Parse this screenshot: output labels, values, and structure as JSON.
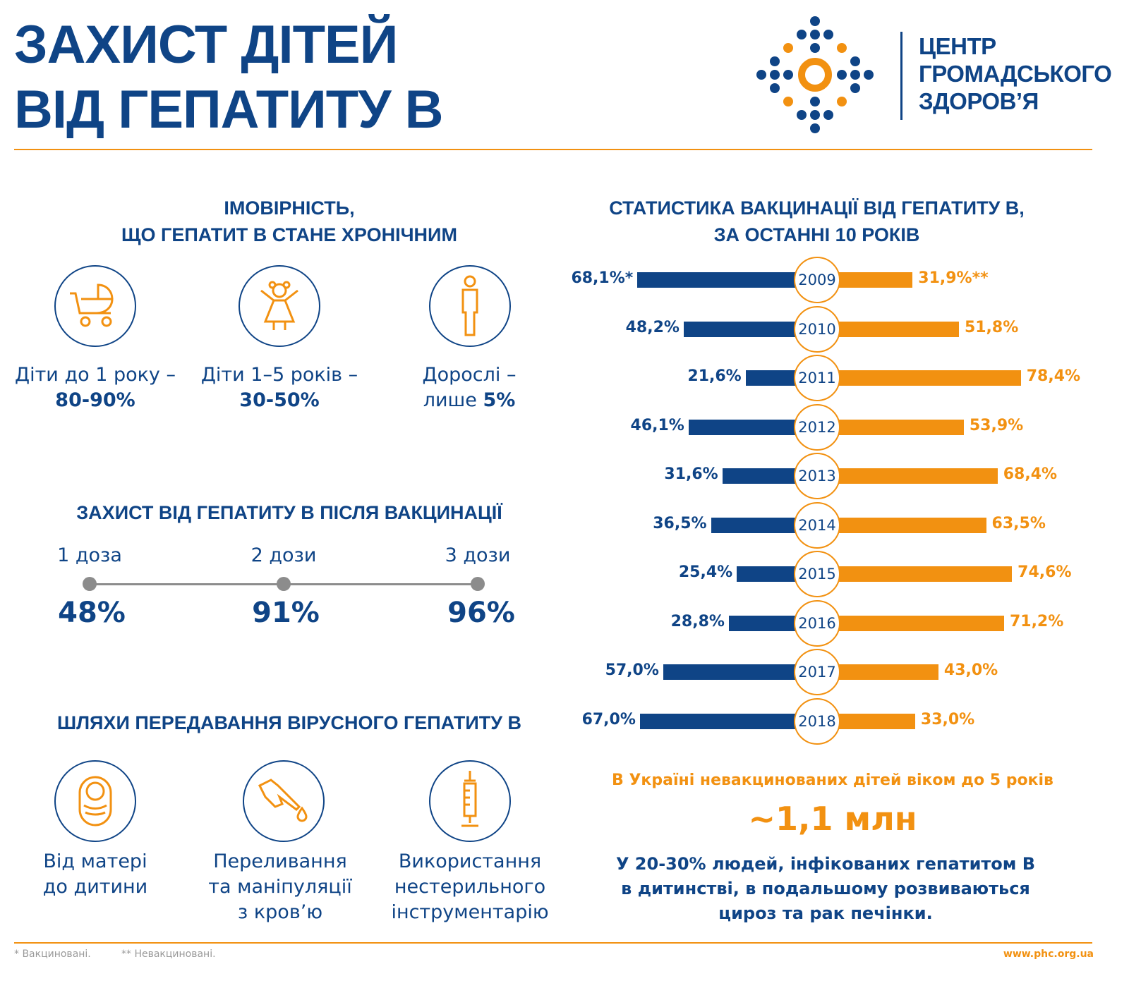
{
  "title": {
    "line1": "ЗАХИСТ ДІТЕЙ",
    "line2": "ВІД ГЕПАТИТУ В"
  },
  "logo": {
    "line1": "ЦЕНТР",
    "line2": "ГРОМАДСЬКОГО",
    "line3": "ЗДОРОВ’Я"
  },
  "chronic": {
    "title1": "ІМОВІРНІСТЬ,",
    "title2": "ЩО ГЕПАТИТ В СТАНЕ ХРОНІЧНИМ",
    "items": [
      {
        "icon": "stroller-icon",
        "label": "Діти до 1 року –",
        "value": "80-90%"
      },
      {
        "icon": "child-icon",
        "label": "Діти 1–5 років –",
        "value": "30-50%"
      },
      {
        "icon": "adult-icon",
        "label": "Дорослі –",
        "prefix": "лише ",
        "value": "5%"
      }
    ]
  },
  "vaccination": {
    "title": "ЗАХИСТ ВІД ГЕПАТИТУ В ПІСЛЯ ВАКЦИНАЦІЇ",
    "doses": [
      {
        "label": "1 доза",
        "value": "48%"
      },
      {
        "label": "2 дози",
        "value": "91%"
      },
      {
        "label": "3 дози",
        "value": "96%"
      }
    ]
  },
  "transmission": {
    "title": "ШЛЯХИ ПЕРЕДАВАННЯ ВІРУСНОГО ГЕПАТИТУ В",
    "items": [
      {
        "icon": "baby-icon",
        "lines": [
          "Від матері",
          "до дитини"
        ]
      },
      {
        "icon": "blood-drop-hand-icon",
        "lines": [
          "Переливання",
          "та маніпуляції",
          "з кров’ю"
        ]
      },
      {
        "icon": "syringe-icon",
        "lines": [
          "Використання",
          "нестерильного",
          "інструментарію"
        ]
      }
    ]
  },
  "chart_data": {
    "type": "bar",
    "title1": "СТАТИСТИКА ВАКЦИНАЦІЇ ВІД ГЕПАТИТУ В,",
    "title2": "ЗА ОСТАННІ 10 РОКІВ",
    "categories": [
      "2009",
      "2010",
      "2011",
      "2012",
      "2013",
      "2014",
      "2015",
      "2016",
      "2017",
      "2018"
    ],
    "series": [
      {
        "name": "Вакциновані",
        "color": "#0f4486",
        "values": [
          68.1,
          48.2,
          21.6,
          46.1,
          31.6,
          36.5,
          25.4,
          28.8,
          57.0,
          67.0
        ],
        "labels": [
          "68,1%*",
          "48,2%",
          "21,6%",
          "46,1%",
          "31,6%",
          "36,5%",
          "25,4%",
          "28,8%",
          "57,0%",
          "67,0%"
        ]
      },
      {
        "name": "Невакциновані",
        "color": "#f29111",
        "values": [
          31.9,
          51.8,
          78.4,
          53.9,
          68.4,
          63.5,
          74.6,
          71.2,
          43.0,
          33.0
        ],
        "labels": [
          "31,9%**",
          "51,8%",
          "78,4%",
          "53,9%",
          "68,4%",
          "63,5%",
          "74,6%",
          "71,2%",
          "43,0%",
          "33,0%"
        ]
      }
    ]
  },
  "facts": {
    "unvaccinated_label": "В Україні невакцинованих дітей віком до 5 років",
    "unvaccinated_value": "~1,1 млн",
    "cirrhosis": [
      "У 20-30% людей, інфікованих гепатитом В",
      "в дитинстві, в подальшому розвиваються",
      "цироз та рак печінки."
    ]
  },
  "footer": {
    "note1": "* Вакциновані.",
    "note2": "** Невакциновані.",
    "url": "www.phc.org.ua"
  }
}
